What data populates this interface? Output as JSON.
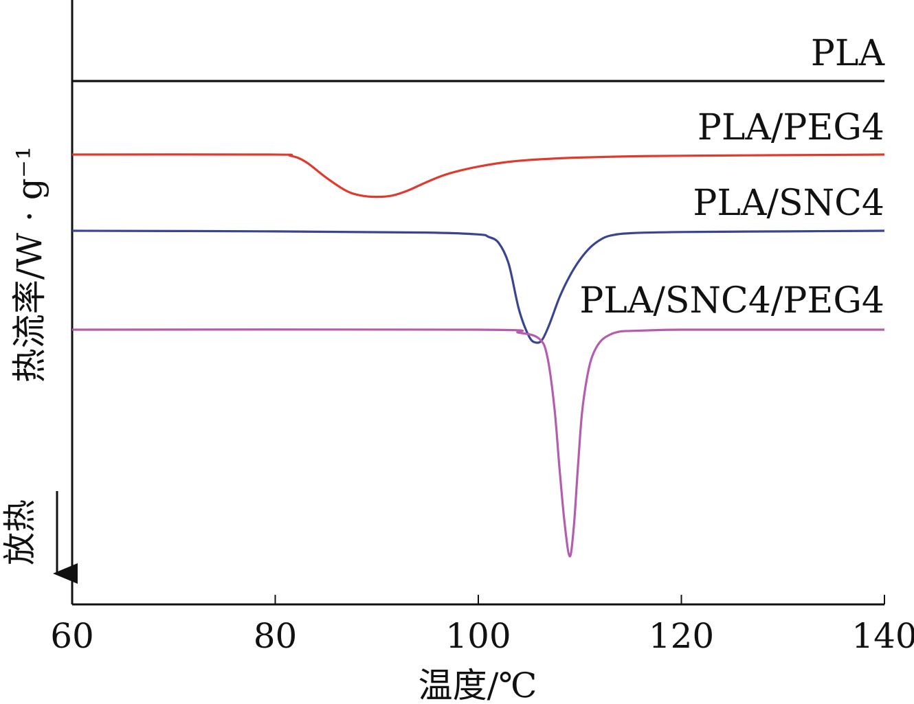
{
  "chart_data": {
    "type": "line",
    "title": "",
    "xlabel": "温度/℃",
    "ylabel": "热流率/W · g⁻¹",
    "exo_label": "放热",
    "xlim": [
      60,
      140
    ],
    "xticks": [
      "60",
      "80",
      "100",
      "120",
      "140"
    ],
    "yticks": [],
    "grid": false,
    "legend": "inline labels above each curve",
    "series": [
      {
        "name": "PLA",
        "color": "#111111",
        "x": [
          60,
          140
        ],
        "y": [
          0,
          0
        ]
      },
      {
        "name": "PLA/PEG4",
        "color": "#e03a2e",
        "x": [
          60,
          79.5,
          81.5,
          83,
          85,
          87,
          88.5,
          90,
          91.5,
          93,
          95,
          97,
          100,
          103,
          106,
          110,
          115,
          120,
          130,
          140
        ],
        "y": [
          0,
          0,
          -0.02,
          -0.12,
          -0.38,
          -0.6,
          -0.68,
          -0.7,
          -0.68,
          -0.6,
          -0.45,
          -0.32,
          -0.2,
          -0.12,
          -0.08,
          -0.05,
          -0.03,
          -0.02,
          -0.01,
          0
        ]
      },
      {
        "name": "PLA/SNC4",
        "color": "#3a4490",
        "x": [
          60,
          80,
          95,
          100,
          101,
          102,
          103,
          104,
          105,
          105.7,
          106.3,
          107,
          108,
          109,
          110,
          111,
          112,
          113,
          115,
          120,
          130,
          140
        ],
        "y": [
          0,
          -0.01,
          -0.03,
          -0.06,
          -0.1,
          -0.2,
          -0.55,
          -1.3,
          -1.75,
          -1.85,
          -1.8,
          -1.55,
          -1.1,
          -0.75,
          -0.48,
          -0.28,
          -0.15,
          -0.08,
          -0.04,
          -0.02,
          -0.01,
          0
        ]
      },
      {
        "name": "PLA/SNC4/PEG4",
        "color": "#b35cb0",
        "x": [
          60,
          100,
          104,
          106,
          106.8,
          107.5,
          108,
          108.5,
          109,
          109.4,
          109.8,
          110.2,
          110.7,
          111.2,
          112,
          113,
          114,
          115,
          117,
          120,
          130,
          140
        ],
        "y": [
          0,
          0,
          -0.05,
          -0.15,
          -0.45,
          -1.3,
          -2.3,
          -3.2,
          -3.75,
          -3.27,
          -2.3,
          -1.4,
          -0.8,
          -0.45,
          -0.2,
          -0.08,
          -0.03,
          -0.02,
          -0.01,
          0,
          0,
          0
        ]
      }
    ]
  }
}
